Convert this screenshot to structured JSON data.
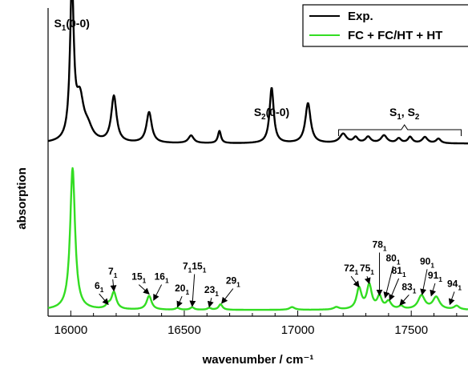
{
  "chart_data": {
    "type": "line",
    "title": "",
    "xlabel": "wavenumber / cm⁻¹",
    "ylabel": "absorption",
    "xlim": [
      15900,
      17750
    ],
    "x_ticks": [
      16000,
      16500,
      17000,
      17500
    ],
    "x_tick_labels": [
      "16000",
      "16500",
      "17000",
      "17500"
    ],
    "y_ticks_shown": false,
    "grid": false,
    "legend_position": "top-right",
    "colors": {
      "exp": "#000000",
      "fc": "#33dd22"
    },
    "series": [
      {
        "name": "Exp.",
        "offset": 0.52,
        "baseline": 0.02,
        "peaks": [
          {
            "x": 16005,
            "h": 0.5,
            "w": 10
          },
          {
            "x": 16040,
            "h": 0.13,
            "w": 20
          },
          {
            "x": 16075,
            "h": 0.04,
            "w": 25
          },
          {
            "x": 16190,
            "h": 0.15,
            "w": 14
          },
          {
            "x": 16345,
            "h": 0.1,
            "w": 14
          },
          {
            "x": 16530,
            "h": 0.025,
            "w": 14
          },
          {
            "x": 16655,
            "h": 0.04,
            "w": 8
          },
          {
            "x": 16885,
            "h": 0.18,
            "w": 11
          },
          {
            "x": 17045,
            "h": 0.13,
            "w": 14
          },
          {
            "x": 17200,
            "h": 0.03,
            "w": 18
          },
          {
            "x": 17255,
            "h": 0.018,
            "w": 12
          },
          {
            "x": 17310,
            "h": 0.02,
            "w": 14
          },
          {
            "x": 17380,
            "h": 0.025,
            "w": 16
          },
          {
            "x": 17445,
            "h": 0.015,
            "w": 12
          },
          {
            "x": 17495,
            "h": 0.02,
            "w": 12
          },
          {
            "x": 17560,
            "h": 0.02,
            "w": 14
          },
          {
            "x": 17620,
            "h": 0.015,
            "w": 12
          }
        ]
      },
      {
        "name": "FC + FC/HT + HT",
        "offset": 0.0,
        "baseline": 0.0,
        "peaks": [
          {
            "x": 16008,
            "h": 0.46,
            "w": 13
          },
          {
            "x": 16165,
            "h": 0.012,
            "w": 12
          },
          {
            "x": 16190,
            "h": 0.055,
            "w": 13
          },
          {
            "x": 16345,
            "h": 0.045,
            "w": 13
          },
          {
            "x": 16470,
            "h": 0.006,
            "w": 10
          },
          {
            "x": 16535,
            "h": 0.008,
            "w": 10
          },
          {
            "x": 16610,
            "h": 0.006,
            "w": 10
          },
          {
            "x": 16660,
            "h": 0.018,
            "w": 10
          },
          {
            "x": 16975,
            "h": 0.009,
            "w": 14
          },
          {
            "x": 17170,
            "h": 0.008,
            "w": 14
          },
          {
            "x": 17270,
            "h": 0.068,
            "w": 13
          },
          {
            "x": 17315,
            "h": 0.078,
            "w": 13
          },
          {
            "x": 17360,
            "h": 0.04,
            "w": 12
          },
          {
            "x": 17400,
            "h": 0.025,
            "w": 14
          },
          {
            "x": 17455,
            "h": 0.01,
            "w": 12
          },
          {
            "x": 17545,
            "h": 0.045,
            "w": 18
          },
          {
            "x": 17610,
            "h": 0.04,
            "w": 18
          },
          {
            "x": 17700,
            "h": 0.012,
            "w": 14
          }
        ]
      }
    ],
    "annotations": {
      "exp": [
        {
          "text": "S",
          "sub": "1",
          "rest": "(0-0)",
          "x": 16005
        },
        {
          "text": "S",
          "sub": "2",
          "rest": "(0-0)",
          "x": 16885
        },
        {
          "text": "S",
          "sub": "1",
          "rest": ", S",
          "sub2": "2",
          "x": 17470,
          "bracket": [
            17180,
            17720
          ]
        }
      ],
      "fc": [
        {
          "main": "6",
          "sub": "1",
          "tx": 16125,
          "ty": 0.068,
          "ax": 16165,
          "ay": 0.018
        },
        {
          "main": "7",
          "sub": "1",
          "tx": 16185,
          "ty": 0.115,
          "ax": 16190,
          "ay": 0.062
        },
        {
          "main": "15",
          "sub": "1",
          "tx": 16300,
          "ty": 0.098,
          "ax": 16345,
          "ay": 0.052
        },
        {
          "main": "16",
          "sub": "1",
          "tx": 16400,
          "ty": 0.098,
          "ax": 16365,
          "ay": 0.032
        },
        {
          "main": "20",
          "sub": "1",
          "tx": 16490,
          "ty": 0.06,
          "ax": 16470,
          "ay": 0.01
        },
        {
          "main": "7",
          "sub": "1",
          "main2": "15",
          "sub2": "1",
          "tx": 16545,
          "ty": 0.132,
          "ax": 16535,
          "ay": 0.012
        },
        {
          "main": "23",
          "sub": "1",
          "tx": 16620,
          "ty": 0.055,
          "ax": 16610,
          "ay": 0.01
        },
        {
          "main": "29",
          "sub": "1",
          "tx": 16715,
          "ty": 0.085,
          "ax": 16665,
          "ay": 0.022
        },
        {
          "main": "72",
          "sub": "1",
          "tx": 17235,
          "ty": 0.125,
          "ax": 17270,
          "ay": 0.075
        },
        {
          "main": "75",
          "sub": "1",
          "tx": 17305,
          "ty": 0.125,
          "ax": 17315,
          "ay": 0.086
        },
        {
          "main": "78",
          "sub": "1",
          "tx": 17360,
          "ty": 0.202,
          "ax": 17360,
          "ay": 0.048
        },
        {
          "main": "80",
          "sub": "1",
          "tx": 17420,
          "ty": 0.158,
          "ax": 17385,
          "ay": 0.04
        },
        {
          "main": "81",
          "sub": "1",
          "tx": 17445,
          "ty": 0.118,
          "ax": 17405,
          "ay": 0.032
        },
        {
          "main": "83",
          "sub": "1",
          "tx": 17490,
          "ty": 0.065,
          "ax": 17450,
          "ay": 0.016
        },
        {
          "main": "90",
          "sub": "1",
          "tx": 17570,
          "ty": 0.148,
          "ax": 17548,
          "ay": 0.05
        },
        {
          "main": "91",
          "sub": "1",
          "tx": 17605,
          "ty": 0.102,
          "ax": 17588,
          "ay": 0.046
        },
        {
          "main": "94",
          "sub": "1",
          "tx": 17690,
          "ty": 0.075,
          "ax": 17670,
          "ay": 0.018
        }
      ]
    }
  }
}
